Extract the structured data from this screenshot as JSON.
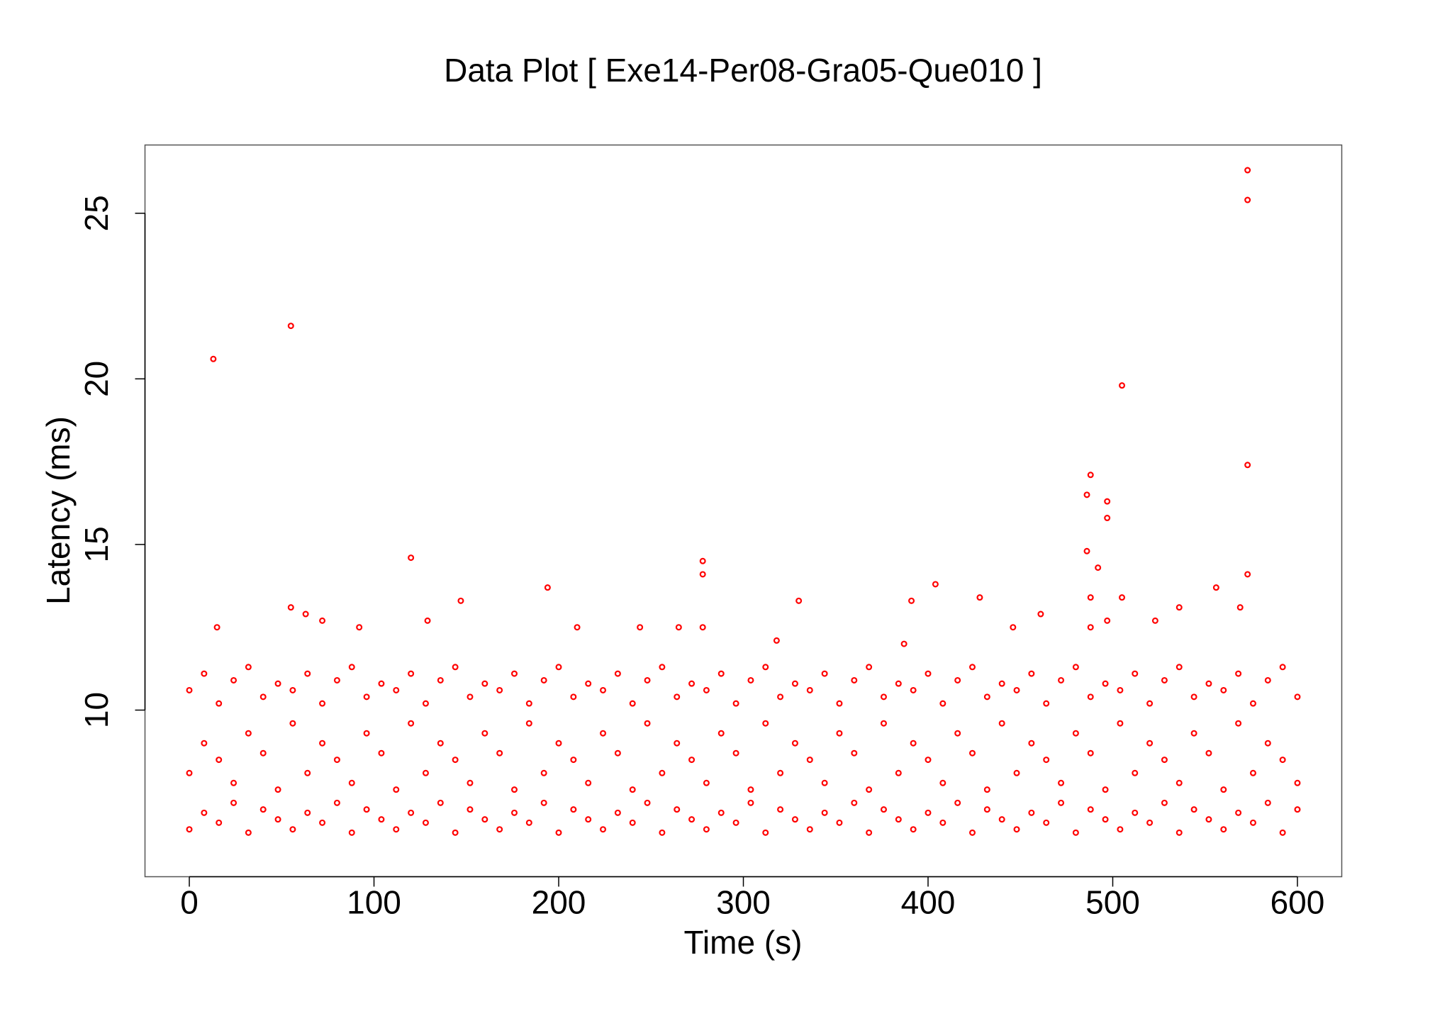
{
  "chart_data": {
    "type": "scatter",
    "title": "Data Plot [ Exe14-Per08-Gra05-Que010 ]",
    "x_label": "Time (s)",
    "y_label": "Latency (ms)",
    "color": "#ff0000",
    "xlim": [
      -24,
      624
    ],
    "ylim": [
      4.97,
      27.06
    ],
    "xticks": [
      0,
      100,
      200,
      300,
      400,
      500,
      600
    ],
    "yticks": [
      10,
      15,
      20,
      25
    ],
    "x": [
      13,
      55,
      505,
      573,
      573,
      573,
      488,
      486,
      497,
      497,
      486,
      492,
      573,
      120,
      278,
      278,
      404,
      194,
      556,
      147,
      330,
      391,
      428,
      488,
      505,
      55,
      536,
      569,
      63,
      72,
      129,
      523,
      497,
      461,
      15,
      92,
      210,
      244,
      265,
      278,
      446,
      488,
      318,
      387,
      0,
      8,
      16,
      24,
      32,
      40,
      48,
      56,
      64,
      72,
      80,
      88,
      96,
      104,
      112,
      120,
      128,
      136,
      144,
      152,
      160,
      168,
      176,
      184,
      192,
      200,
      208,
      216,
      224,
      232,
      240,
      248,
      256,
      264,
      272,
      280,
      288,
      296,
      304,
      312,
      320,
      328,
      336,
      344,
      352,
      360,
      368,
      376,
      384,
      392,
      400,
      408,
      416,
      424,
      432,
      440,
      448,
      456,
      464,
      472,
      480,
      488,
      496,
      504,
      512,
      520,
      528,
      536,
      544,
      552,
      560,
      568,
      576,
      584,
      592,
      600,
      0,
      8,
      16,
      24,
      32,
      40,
      48,
      56,
      64,
      72,
      80,
      88,
      96,
      104,
      112,
      120,
      128,
      136,
      144,
      152,
      160,
      168,
      176,
      184,
      192,
      200,
      208,
      216,
      224,
      232,
      240,
      248,
      256,
      264,
      272,
      280,
      288,
      296,
      304,
      312,
      320,
      328,
      336,
      344,
      352,
      360,
      368,
      376,
      384,
      392,
      400,
      408,
      416,
      424,
      432,
      440,
      448,
      456,
      464,
      472,
      480,
      488,
      496,
      504,
      512,
      520,
      528,
      536,
      544,
      552,
      560,
      568,
      576,
      584,
      592,
      600,
      0,
      8,
      16,
      24,
      32,
      40,
      48,
      56,
      64,
      72,
      80,
      88,
      96,
      104,
      112,
      120,
      128,
      136,
      144,
      152,
      160,
      168,
      176,
      184,
      192,
      200,
      208,
      216,
      224,
      232,
      240,
      248,
      256,
      264,
      272,
      280,
      288,
      296,
      304,
      312,
      320,
      328,
      336,
      344,
      352,
      360,
      368,
      376,
      384,
      392,
      400,
      408,
      416,
      424,
      432,
      440,
      448,
      456,
      464,
      472,
      480,
      488,
      496,
      504,
      512,
      520,
      528,
      536,
      544,
      552,
      560,
      568,
      576,
      584,
      592,
      600
    ],
    "values": [
      20.6,
      21.6,
      19.8,
      26.3,
      25.4,
      17.4,
      17.1,
      16.5,
      16.3,
      15.8,
      14.8,
      14.3,
      14.1,
      14.6,
      14.5,
      14.1,
      13.8,
      13.7,
      13.7,
      13.3,
      13.3,
      13.3,
      13.4,
      13.4,
      13.4,
      13.1,
      13.1,
      13.1,
      12.9,
      12.7,
      12.7,
      12.7,
      12.7,
      12.9,
      12.5,
      12.5,
      12.5,
      12.5,
      12.5,
      12.5,
      12.5,
      12.5,
      12.1,
      12.0,
      6.4,
      6.9,
      6.6,
      7.2,
      6.3,
      7.0,
      6.7,
      6.4,
      6.9,
      6.6,
      7.2,
      6.3,
      7.0,
      6.7,
      6.4,
      6.9,
      6.6,
      7.2,
      6.3,
      7.0,
      6.7,
      6.4,
      6.9,
      6.6,
      7.2,
      6.3,
      7.0,
      6.7,
      6.4,
      6.9,
      6.6,
      7.2,
      6.3,
      7.0,
      6.7,
      6.4,
      6.9,
      6.6,
      7.2,
      6.3,
      7.0,
      6.7,
      6.4,
      6.9,
      6.6,
      7.2,
      6.3,
      7.0,
      6.7,
      6.4,
      6.9,
      6.6,
      7.2,
      6.3,
      7.0,
      6.7,
      6.4,
      6.9,
      6.6,
      7.2,
      6.3,
      7.0,
      6.7,
      6.4,
      6.9,
      6.6,
      7.2,
      6.3,
      7.0,
      6.7,
      6.4,
      6.9,
      6.6,
      7.2,
      6.3,
      7.0,
      8.1,
      9.0,
      8.5,
      7.8,
      9.3,
      8.7,
      7.6,
      9.6,
      8.1,
      9.0,
      8.5,
      7.8,
      9.3,
      8.7,
      7.6,
      9.6,
      8.1,
      9.0,
      8.5,
      7.8,
      9.3,
      8.7,
      7.6,
      9.6,
      8.1,
      9.0,
      8.5,
      7.8,
      9.3,
      8.7,
      7.6,
      9.6,
      8.1,
      9.0,
      8.5,
      7.8,
      9.3,
      8.7,
      7.6,
      9.6,
      8.1,
      9.0,
      8.5,
      7.8,
      9.3,
      8.7,
      7.6,
      9.6,
      8.1,
      9.0,
      8.5,
      7.8,
      9.3,
      8.7,
      7.6,
      9.6,
      8.1,
      9.0,
      8.5,
      7.8,
      9.3,
      8.7,
      7.6,
      9.6,
      8.1,
      9.0,
      8.5,
      7.8,
      9.3,
      8.7,
      7.6,
      9.6,
      8.1,
      9.0,
      8.5,
      7.8,
      10.6,
      11.1,
      10.2,
      10.9,
      11.3,
      10.4,
      10.8,
      10.6,
      11.1,
      10.2,
      10.9,
      11.3,
      10.4,
      10.8,
      10.6,
      11.1,
      10.2,
      10.9,
      11.3,
      10.4,
      10.8,
      10.6,
      11.1,
      10.2,
      10.9,
      11.3,
      10.4,
      10.8,
      10.6,
      11.1,
      10.2,
      10.9,
      11.3,
      10.4,
      10.8,
      10.6,
      11.1,
      10.2,
      10.9,
      11.3,
      10.4,
      10.8,
      10.6,
      11.1,
      10.2,
      10.9,
      11.3,
      10.4,
      10.8,
      10.6,
      11.1,
      10.2,
      10.9,
      11.3,
      10.4,
      10.8,
      10.6,
      11.1,
      10.2,
      10.9,
      11.3,
      10.4,
      10.8,
      10.6,
      11.1,
      10.2,
      10.9,
      11.3,
      10.4,
      10.8,
      10.6,
      11.1,
      10.2,
      10.9,
      11.3,
      10.4
    ]
  }
}
